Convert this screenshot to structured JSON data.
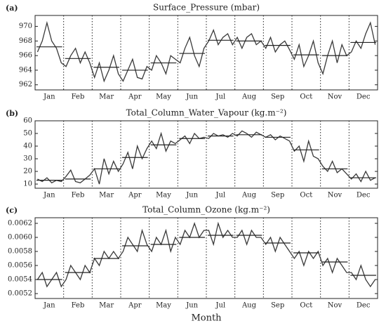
{
  "chart_data": [
    {
      "type": "line",
      "label": "(a)",
      "title": "Surface_Pressure (mbar)",
      "categories": [
        "Jan",
        "Feb",
        "Mar",
        "Apr",
        "May",
        "Jun",
        "Jul",
        "Aug",
        "Sep",
        "Oct",
        "Nov",
        "Dec"
      ],
      "ylim": [
        961.3,
        971.5
      ],
      "yticks": [
        962,
        964,
        966,
        968,
        970
      ],
      "daily": {
        "color": "#3a3a3a",
        "values": [
          966.5,
          968,
          970.5,
          968,
          967,
          965,
          964.5,
          966,
          967,
          965,
          966.5,
          965,
          963,
          965,
          962.5,
          964,
          966,
          963.5,
          962.5,
          964,
          965.5,
          963,
          962.8,
          964.5,
          964,
          966,
          965,
          963.5,
          966,
          965.5,
          965,
          967,
          968.5,
          966,
          964.5,
          967,
          968,
          969.5,
          967.5,
          968.5,
          969,
          967.5,
          968.5,
          967,
          968.5,
          969,
          967.5,
          968,
          967,
          968.5,
          966.5,
          967.5,
          968,
          966.8,
          965.5,
          967.5,
          964.5,
          966,
          968,
          965,
          963.5,
          966,
          968,
          965,
          967.5,
          966,
          966.5,
          968,
          967,
          969,
          970.5,
          967.5
        ]
      },
      "monthly_mean": {
        "color": "#222222",
        "values": [
          967.2,
          965.6,
          964.4,
          964.0,
          965.0,
          966.3,
          968.1,
          968.0,
          967.4,
          966.1,
          966.0,
          967.8
        ]
      }
    },
    {
      "type": "line",
      "label": "(b)",
      "title": "Total_Column_Water_Vapour (kg.m⁻²)",
      "categories": [
        "Jan",
        "Feb",
        "Mar",
        "Apr",
        "May",
        "Jun",
        "Jul",
        "Aug",
        "Sep",
        "Oct",
        "Nov",
        "Dec"
      ],
      "ylim": [
        6.7,
        60
      ],
      "yticks": [
        10,
        20,
        30,
        40,
        50,
        60
      ],
      "daily": {
        "color": "#3a3a3a",
        "values": [
          14,
          12,
          15,
          11,
          13,
          12,
          16,
          21,
          12,
          11,
          14,
          17,
          22,
          10,
          30,
          18,
          28,
          20,
          26,
          35,
          22,
          40,
          30,
          38,
          44,
          38,
          50,
          36,
          44,
          42,
          45,
          48,
          42,
          50,
          46,
          47,
          46,
          50,
          48,
          49,
          47,
          50,
          48,
          52,
          50,
          47,
          51,
          49,
          47,
          49,
          45,
          48,
          46,
          44,
          36,
          40,
          28,
          44,
          32,
          30,
          24,
          20,
          28,
          19,
          22,
          18,
          14,
          18,
          12,
          20,
          13,
          15
        ]
      },
      "monthly_mean": {
        "color": "#222222",
        "values": [
          13,
          14,
          22,
          31,
          41,
          46,
          48,
          49,
          47,
          37,
          22,
          15
        ]
      }
    },
    {
      "type": "line",
      "label": "(c)",
      "title": "Total_Column_Ozone (kg.m⁻²)",
      "xlabel": "Month",
      "categories": [
        "Jan",
        "Feb",
        "Mar",
        "Apr",
        "May",
        "Jun",
        "Jul",
        "Aug",
        "Sep",
        "Oct",
        "Nov",
        "Dec"
      ],
      "ylim": [
        0.00513,
        0.00628
      ],
      "yticks": [
        0.0052,
        0.0054,
        0.0056,
        0.0058,
        {
          "value": 0.006,
          "label": "0.0060"
        },
        0.0062
      ],
      "daily": {
        "color": "#3a3a3a",
        "values": [
          0.0054,
          0.0055,
          0.0053,
          0.0054,
          0.0055,
          0.0053,
          0.0054,
          0.0056,
          0.0055,
          0.0054,
          0.0056,
          0.0055,
          0.0057,
          0.0056,
          0.0058,
          0.0057,
          0.0058,
          0.0057,
          0.0058,
          0.006,
          0.0059,
          0.0058,
          0.0061,
          0.0059,
          0.0058,
          0.006,
          0.0059,
          0.0061,
          0.0058,
          0.006,
          0.0059,
          0.0061,
          0.006,
          0.0062,
          0.006,
          0.0061,
          0.0061,
          0.0059,
          0.0062,
          0.006,
          0.0061,
          0.006,
          0.006,
          0.0061,
          0.0059,
          0.0061,
          0.006,
          0.006,
          0.0059,
          0.006,
          0.0058,
          0.006,
          0.0059,
          0.0058,
          0.0057,
          0.0058,
          0.0056,
          0.0058,
          0.0057,
          0.0058,
          0.0056,
          0.0057,
          0.0055,
          0.0057,
          0.0056,
          0.0055,
          0.0055,
          0.0054,
          0.0056,
          0.0054,
          0.0053,
          0.0054
        ]
      },
      "monthly_mean": {
        "color": "#222222",
        "values": [
          0.0054,
          0.0055,
          0.0057,
          0.00588,
          0.0059,
          0.006,
          0.00603,
          0.00603,
          0.00592,
          0.00578,
          0.00565,
          0.00546
        ]
      }
    }
  ]
}
